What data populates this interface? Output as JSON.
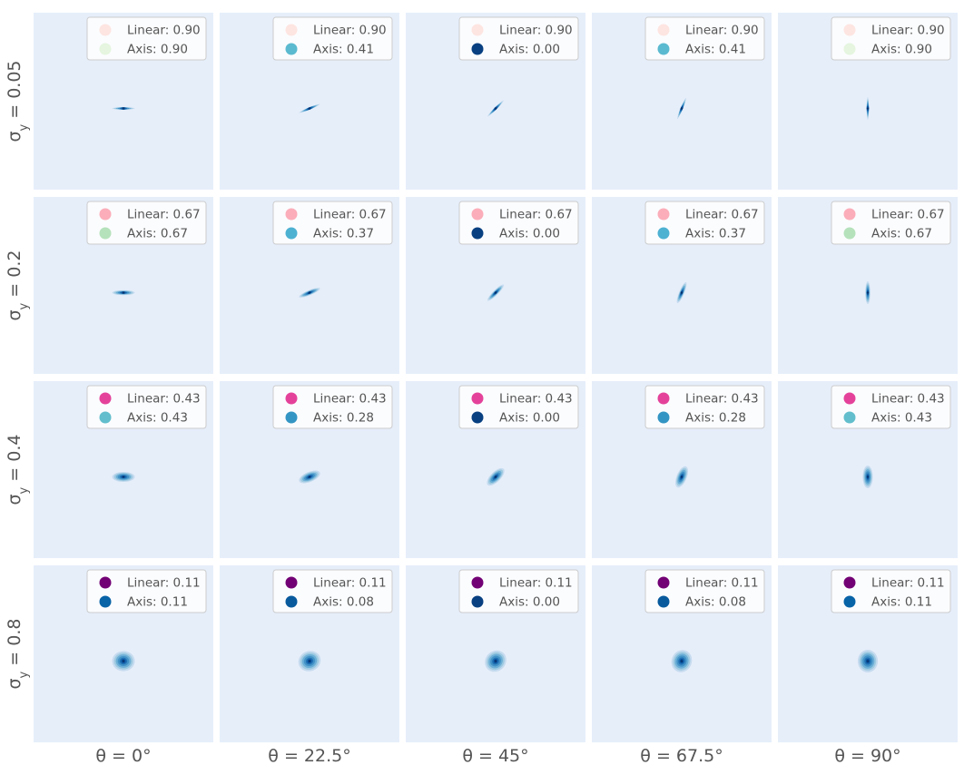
{
  "chart_data": {
    "type": "contour",
    "row_labels": [
      "σ_y = 0.05",
      "σ_y = 0.2",
      "σ_y = 0.4",
      "σ_y = 0.8"
    ],
    "row_sigma": [
      0.05,
      0.2,
      0.4,
      0.8
    ],
    "col_labels": [
      "θ = 0°",
      "θ = 22.5°",
      "θ = 45°",
      "θ = 67.5°",
      "θ = 90°"
    ],
    "col_theta_deg": [
      0,
      22.5,
      45,
      67.5,
      90
    ],
    "sigma_x": 0.9,
    "linear_prefix": "Linear: ",
    "axis_prefix": "Axis: ",
    "linear_values": [
      0.9,
      0.67,
      0.43,
      0.11
    ],
    "axis_values": [
      [
        0.9,
        0.41,
        0.0,
        0.41,
        0.9
      ],
      [
        0.67,
        0.37,
        0.0,
        0.37,
        0.67
      ],
      [
        0.43,
        0.28,
        0.0,
        0.28,
        0.43
      ],
      [
        0.11,
        0.08,
        0.0,
        0.08,
        0.11
      ]
    ],
    "panel_background": "#e6eefa",
    "contour_colors": [
      "#c6dbef",
      "#9ecae1",
      "#6baed6",
      "#4292c6",
      "#2171b5",
      "#08519c",
      "#08306b"
    ],
    "linear_colormap": "RdPu",
    "axis_colormap": "GnBu"
  }
}
